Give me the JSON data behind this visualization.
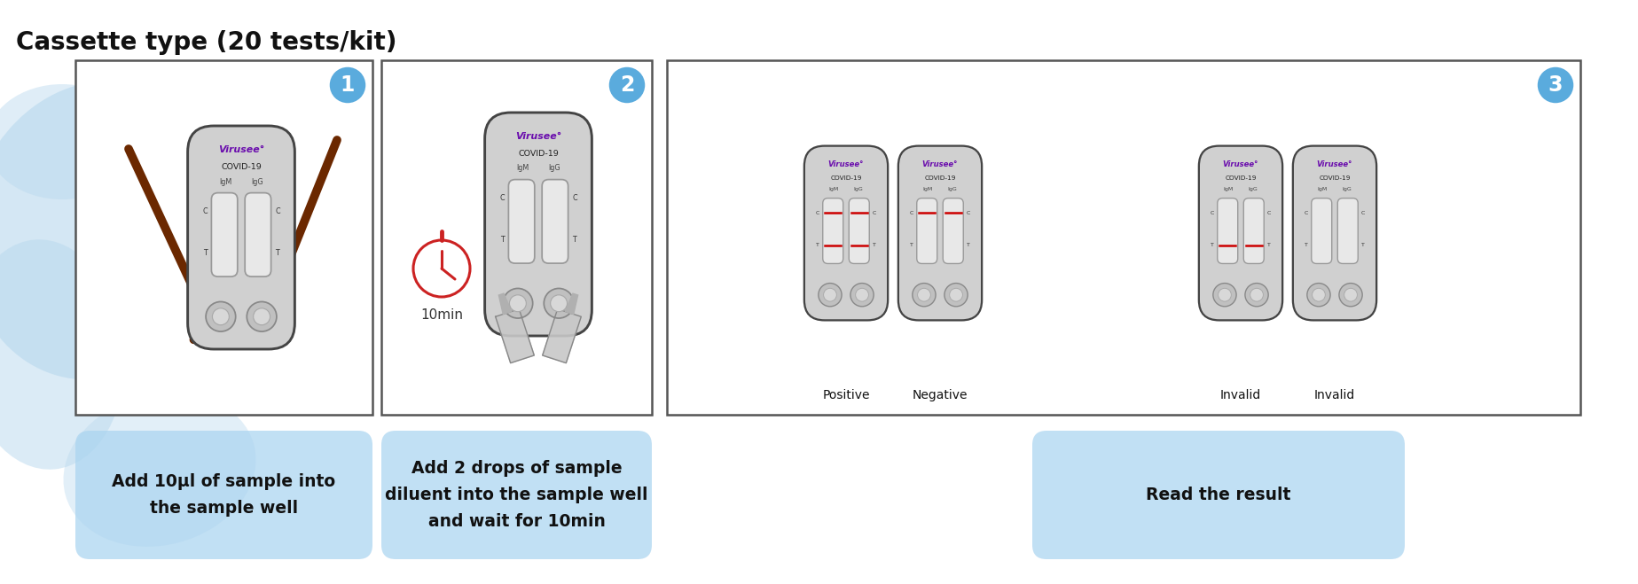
{
  "title": "Cassette type (20 tests/kit)",
  "title_fontsize": 20,
  "title_fontweight": "bold",
  "step_numbers": [
    "1",
    "2",
    "3"
  ],
  "step_number_color": "#5aabdd",
  "captions": [
    "Add 10μl of sample into\nthe sample well",
    "Add 2 drops of sample\ndiluent into the sample well\nand wait for 10min",
    "Read the result"
  ],
  "virusee_color": "#6a0dad",
  "covid_color": "#222222",
  "label_color": "#444444",
  "red_line_color": "#cc0000",
  "cassette_body": "#d0d0d0",
  "cassette_edge": "#444444",
  "win_fill": "#e8e8e8",
  "win_edge": "#999999",
  "btn_fill": "#c0c0c0",
  "btn_edge": "#888888",
  "caption_bg": "#aad4f0",
  "bg_blue": "#b8d8ee",
  "bg_pink": "#d8a8a8",
  "bg_lightpink": "#e8c8c8",
  "stick_color": "#6b2800",
  "timer_color": "#cc2222",
  "dropper_color": "#c8c8c8"
}
